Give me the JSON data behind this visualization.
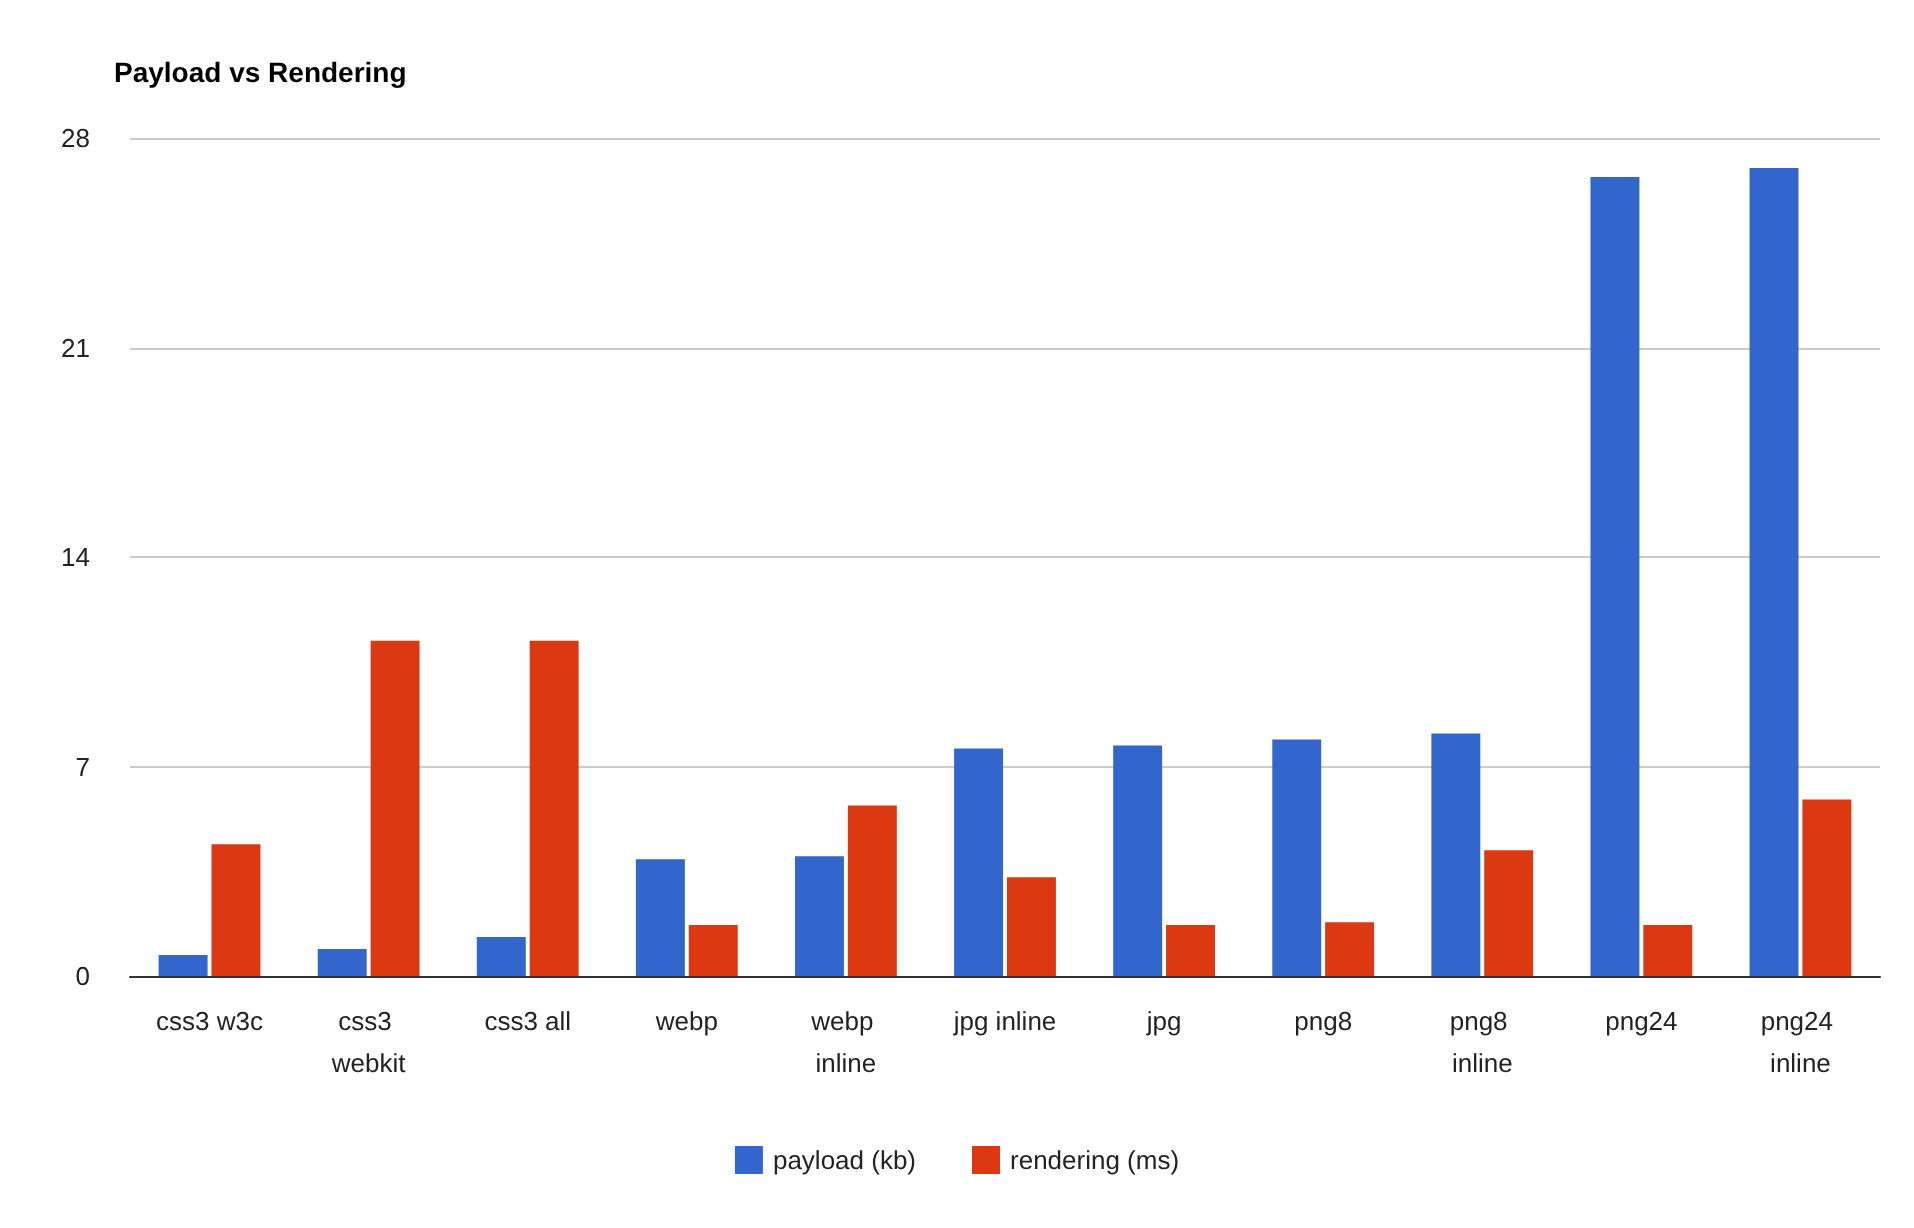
{
  "chart_data": {
    "type": "bar",
    "title": "Payload vs Rendering",
    "categories": [
      "css3 w3c",
      "css3 webkit",
      "css3 all",
      "webp",
      "webp inline",
      "jpg inline",
      "jpg",
      "png8",
      "png8 inline",
      "png24",
      "png24 inline"
    ],
    "series": [
      {
        "name": "payload (kb)",
        "color": "#3366cc",
        "values": [
          0.7,
          0.9,
          1.3,
          3.9,
          4.0,
          7.6,
          7.7,
          7.9,
          8.1,
          26.7,
          27.0
        ]
      },
      {
        "name": "rendering (ms)",
        "color": "#dc3912",
        "values": [
          4.4,
          11.2,
          11.2,
          1.7,
          5.7,
          3.3,
          1.7,
          1.8,
          4.2,
          1.7,
          5.9
        ]
      }
    ],
    "ylim": [
      0,
      28
    ],
    "yticks": [
      0,
      7,
      14,
      21,
      28
    ],
    "grid": "y",
    "legend": "bottom"
  }
}
